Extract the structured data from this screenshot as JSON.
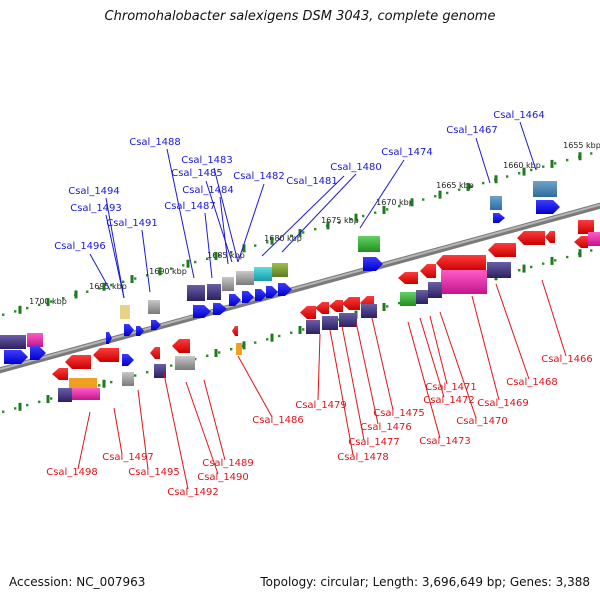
{
  "title": "Chromohalobacter salexigens DSM 3043, complete genome",
  "footer": {
    "accession": "Accession: NC_007963",
    "summary": "Topology: circular; Length: 3,696,649 bp; Genes: 3,388"
  },
  "colors": {
    "top_strand_label": "#1a1ad6",
    "bottom_strand_label": "#e0141a",
    "dots": "#2e8b2e",
    "genome_line": "#8c8c8c"
  },
  "ruler_labels": [
    "1655 kbp",
    "1660 kbp",
    "1665 kbp",
    "1670 kbp",
    "1675 kbp",
    "1680 kbp",
    "1685 kbp",
    "1690 kbp",
    "1695 kbp",
    "1700 kbp"
  ],
  "top_genes": [
    "Csal_1464",
    "Csal_1467",
    "Csal_1474",
    "Csal_1480",
    "Csal_1481",
    "Csal_1482",
    "Csal_1483",
    "Csal_1485",
    "Csal_1484",
    "Csal_1487",
    "Csal_1488",
    "Csal_1491",
    "Csal_1493",
    "Csal_1494",
    "Csal_1496"
  ],
  "bottom_genes": [
    "Csal_1466",
    "Csal_1468",
    "Csal_1469",
    "Csal_1470",
    "Csal_1471",
    "Csal_1472",
    "Csal_1473",
    "Csal_1475",
    "Csal_1476",
    "Csal_1477",
    "Csal_1478",
    "Csal_1479",
    "Csal_1486",
    "Csal_1489",
    "Csal_1490",
    "Csal_1492",
    "Csal_1495",
    "Csal_1497",
    "Csal_1498"
  ]
}
